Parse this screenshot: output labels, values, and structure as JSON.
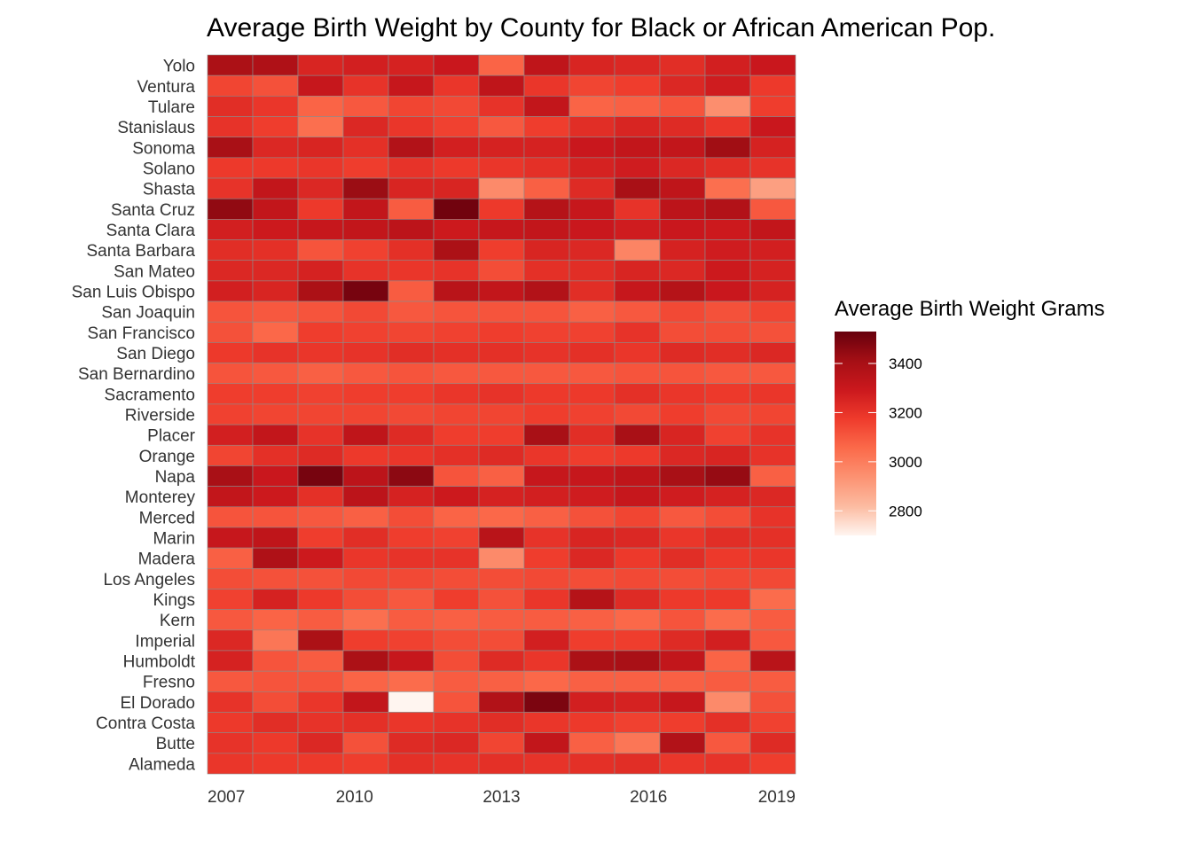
{
  "chart_data": {
    "type": "heatmap",
    "title": "Average Birth Weight by County for Black or African American Pop.",
    "xlabel": "",
    "ylabel": "",
    "x": [
      2007,
      2008,
      2009,
      2010,
      2011,
      2012,
      2013,
      2014,
      2015,
      2016,
      2017,
      2018,
      2019
    ],
    "x_tick_labels": [
      "2007",
      "2010",
      "2013",
      "2016",
      "2019"
    ],
    "y": [
      "Yolo",
      "Ventura",
      "Tulare",
      "Stanislaus",
      "Sonoma",
      "Solano",
      "Shasta",
      "Santa Cruz",
      "Santa Clara",
      "Santa Barbara",
      "San Mateo",
      "San Luis Obispo",
      "San Joaquin",
      "San Francisco",
      "San Diego",
      "San Bernardino",
      "Sacramento",
      "Riverside",
      "Placer",
      "Orange",
      "Napa",
      "Monterey",
      "Merced",
      "Marin",
      "Madera",
      "Los Angeles",
      "Kings",
      "Kern",
      "Imperial",
      "Humboldt",
      "Fresno",
      "El Dorado",
      "Contra Costa",
      "Butte",
      "Alameda"
    ],
    "values": [
      [
        3390,
        3380,
        3250,
        3270,
        3260,
        3300,
        3070,
        3330,
        3250,
        3240,
        3220,
        3270,
        3300
      ],
      [
        3150,
        3120,
        3310,
        3200,
        3310,
        3190,
        3330,
        3190,
        3150,
        3170,
        3240,
        3280,
        3180
      ],
      [
        3220,
        3190,
        3070,
        3100,
        3150,
        3140,
        3200,
        3320,
        3070,
        3080,
        3110,
        2950,
        3170
      ],
      [
        3200,
        3170,
        3040,
        3240,
        3190,
        3160,
        3100,
        3170,
        3220,
        3250,
        3230,
        3190,
        3300
      ],
      [
        3400,
        3240,
        3250,
        3210,
        3370,
        3270,
        3260,
        3260,
        3300,
        3320,
        3320,
        3420,
        3260
      ],
      [
        3180,
        3180,
        3190,
        3170,
        3200,
        3180,
        3190,
        3210,
        3260,
        3280,
        3240,
        3220,
        3200
      ],
      [
        3200,
        3320,
        3240,
        3430,
        3250,
        3250,
        2960,
        3080,
        3230,
        3400,
        3330,
        3040,
        2900
      ],
      [
        3450,
        3320,
        3180,
        3320,
        3090,
        3510,
        3180,
        3360,
        3310,
        3200,
        3340,
        3370,
        3100
      ],
      [
        3270,
        3290,
        3310,
        3320,
        3340,
        3290,
        3310,
        3320,
        3300,
        3280,
        3300,
        3290,
        3320
      ],
      [
        3220,
        3210,
        3110,
        3160,
        3210,
        3390,
        3170,
        3250,
        3240,
        2980,
        3260,
        3280,
        3270
      ],
      [
        3240,
        3240,
        3260,
        3200,
        3190,
        3200,
        3130,
        3210,
        3220,
        3250,
        3240,
        3290,
        3260
      ],
      [
        3270,
        3250,
        3390,
        3500,
        3090,
        3350,
        3320,
        3370,
        3220,
        3310,
        3360,
        3300,
        3260
      ],
      [
        3110,
        3100,
        3110,
        3140,
        3100,
        3110,
        3110,
        3110,
        3080,
        3100,
        3140,
        3120,
        3150
      ],
      [
        3120,
        3060,
        3170,
        3160,
        3150,
        3160,
        3170,
        3160,
        3160,
        3200,
        3130,
        3130,
        3120
      ],
      [
        3180,
        3200,
        3190,
        3200,
        3220,
        3210,
        3210,
        3200,
        3210,
        3190,
        3230,
        3220,
        3240
      ],
      [
        3110,
        3100,
        3080,
        3100,
        3110,
        3100,
        3100,
        3100,
        3100,
        3110,
        3110,
        3100,
        3100
      ],
      [
        3170,
        3170,
        3160,
        3170,
        3170,
        3190,
        3200,
        3180,
        3180,
        3210,
        3190,
        3180,
        3190
      ],
      [
        3160,
        3150,
        3150,
        3150,
        3140,
        3150,
        3150,
        3170,
        3160,
        3140,
        3170,
        3140,
        3150
      ],
      [
        3270,
        3320,
        3200,
        3330,
        3230,
        3170,
        3170,
        3400,
        3220,
        3400,
        3250,
        3160,
        3200
      ],
      [
        3150,
        3210,
        3230,
        3180,
        3190,
        3210,
        3230,
        3190,
        3170,
        3180,
        3240,
        3250,
        3200
      ],
      [
        3400,
        3300,
        3500,
        3340,
        3460,
        3110,
        3080,
        3310,
        3310,
        3330,
        3400,
        3440,
        3080
      ],
      [
        3320,
        3290,
        3210,
        3340,
        3260,
        3290,
        3260,
        3270,
        3280,
        3310,
        3280,
        3260,
        3240
      ],
      [
        3110,
        3110,
        3100,
        3080,
        3130,
        3070,
        3060,
        3080,
        3120,
        3150,
        3100,
        3130,
        3200
      ],
      [
        3310,
        3330,
        3170,
        3220,
        3170,
        3160,
        3350,
        3200,
        3250,
        3240,
        3190,
        3220,
        3210
      ],
      [
        3080,
        3380,
        3290,
        3190,
        3200,
        3200,
        2960,
        3170,
        3240,
        3180,
        3220,
        3180,
        3190
      ],
      [
        3130,
        3120,
        3120,
        3140,
        3140,
        3130,
        3130,
        3140,
        3130,
        3140,
        3130,
        3140,
        3140
      ],
      [
        3160,
        3260,
        3180,
        3130,
        3100,
        3170,
        3120,
        3190,
        3360,
        3230,
        3180,
        3180,
        3050
      ],
      [
        3100,
        3070,
        3090,
        3040,
        3090,
        3080,
        3090,
        3090,
        3080,
        3060,
        3110,
        3050,
        3090
      ],
      [
        3240,
        3020,
        3390,
        3170,
        3160,
        3130,
        3130,
        3270,
        3170,
        3170,
        3230,
        3270,
        3100
      ],
      [
        3260,
        3110,
        3090,
        3390,
        3310,
        3130,
        3230,
        3190,
        3390,
        3400,
        3320,
        3070,
        3350
      ],
      [
        3100,
        3110,
        3110,
        3070,
        3050,
        3090,
        3080,
        3060,
        3080,
        3080,
        3080,
        3090,
        3090
      ],
      [
        3200,
        3130,
        3190,
        3320,
        2700,
        3110,
        3370,
        3490,
        3270,
        3260,
        3310,
        2960,
        3120
      ],
      [
        3180,
        3220,
        3200,
        3210,
        3190,
        3200,
        3220,
        3190,
        3180,
        3160,
        3170,
        3210,
        3160
      ],
      [
        3200,
        3180,
        3240,
        3120,
        3230,
        3240,
        3150,
        3320,
        3080,
        3020,
        3370,
        3100,
        3230
      ],
      [
        3190,
        3180,
        3180,
        3170,
        3210,
        3200,
        3210,
        3200,
        3210,
        3220,
        3190,
        3200,
        3170
      ]
    ],
    "colorbar": {
      "title": "Average Birth Weight Grams",
      "min": 2700,
      "max": 3530,
      "ticks": [
        2800,
        3000,
        3200,
        3400
      ],
      "colors": [
        "#fff5f0",
        "#fcbba1",
        "#fc9272",
        "#fb6a4a",
        "#ef3b2c",
        "#cb181d",
        "#a50f15",
        "#67000d"
      ]
    },
    "grid": false,
    "legend_position": "right"
  }
}
